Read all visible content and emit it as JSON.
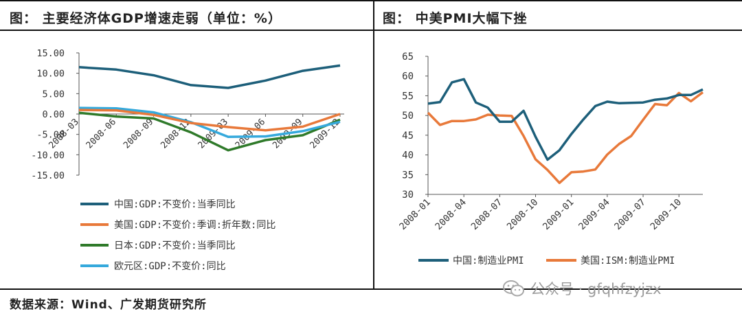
{
  "left_panel": {
    "title": "图：  主要经济体GDP增速走弱（单位：%）",
    "legend": [
      {
        "label": "中国:GDP:不变价:当季同比",
        "color": "#1d5f7a"
      },
      {
        "label": "美国:GDP:不变价:季调:折年数:同比",
        "color": "#e8793a"
      },
      {
        "label": "日本:GDP:不变价:当季同比",
        "color": "#2f7a2a"
      },
      {
        "label": "欧元区:GDP:不变价:同比",
        "color": "#35a9dc"
      }
    ]
  },
  "right_panel": {
    "title": "图：  中美PMI大幅下挫",
    "legend": [
      {
        "label": "中国:制造业PMI",
        "color": "#1d5f7a"
      },
      {
        "label": "美国:ISM:制造业PMI",
        "color": "#e8793a"
      }
    ]
  },
  "source": "数据来源：Wind、广发期货研究所",
  "watermark": "公众号 · gfqhfzyjzx",
  "chart_data": [
    {
      "type": "line",
      "title": "主要经济体GDP增速走弱（单位：%）",
      "categories": [
        "2008-03",
        "2008-06",
        "2008-09",
        "2008-12",
        "2009-03",
        "2009-06",
        "2009-09",
        "2009-12"
      ],
      "y_tick_labels": [
        "15.00",
        "10.00",
        "5.00",
        "0.00",
        "-5.00",
        "-10.00",
        "-15.00"
      ],
      "ylim": [
        -15,
        15
      ],
      "grid": false,
      "legend_position": "bottom",
      "series": [
        {
          "name": "中国:GDP:不变价:当季同比",
          "values": [
            11.5,
            10.9,
            9.5,
            7.1,
            6.4,
            8.2,
            10.6,
            11.9
          ]
        },
        {
          "name": "美国:GDP:不变价:季调:折年数:同比",
          "values": [
            1.0,
            0.9,
            -0.2,
            -2.2,
            -3.2,
            -4.0,
            -3.1,
            0.0
          ]
        },
        {
          "name": "日本:GDP:不变价:当季同比",
          "values": [
            0.3,
            -0.6,
            -1.1,
            -4.5,
            -8.9,
            -6.4,
            -5.2,
            -1.4
          ]
        },
        {
          "name": "欧元区:GDP:不变价:同比",
          "values": [
            1.5,
            1.4,
            0.4,
            -2.0,
            -5.6,
            -5.5,
            -4.2,
            -1.9
          ]
        }
      ]
    },
    {
      "type": "line",
      "title": "中美PMI大幅下挫",
      "x": [
        "2008-01",
        "2008-02",
        "2008-03",
        "2008-04",
        "2008-05",
        "2008-06",
        "2008-07",
        "2008-08",
        "2008-09",
        "2008-10",
        "2008-11",
        "2008-12",
        "2009-01",
        "2009-02",
        "2009-03",
        "2009-04",
        "2009-05",
        "2009-06",
        "2009-07",
        "2009-08",
        "2009-09",
        "2009-10",
        "2009-11",
        "2009-12"
      ],
      "x_tick_labels": [
        "2008-01",
        "2008-04",
        "2008-07",
        "2008-10",
        "2009-01",
        "2009-04",
        "2009-07",
        "2009-10"
      ],
      "y_tick_labels": [
        "65",
        "60",
        "55",
        "50",
        "45",
        "40",
        "35",
        "30"
      ],
      "ylim": [
        30,
        65
      ],
      "grid": false,
      "legend_position": "bottom",
      "series": [
        {
          "name": "中国:制造业PMI",
          "values": [
            53.0,
            53.4,
            58.4,
            59.2,
            53.3,
            52.0,
            48.4,
            48.4,
            51.2,
            44.6,
            38.8,
            41.2,
            45.3,
            49.0,
            52.4,
            53.5,
            53.1,
            53.2,
            53.3,
            54.0,
            54.3,
            55.2,
            55.2,
            56.6
          ]
        },
        {
          "name": "美国:ISM:制造业PMI",
          "values": [
            50.7,
            47.6,
            48.6,
            48.6,
            49.0,
            50.2,
            50.0,
            49.9,
            44.8,
            38.9,
            36.2,
            32.9,
            35.6,
            35.8,
            36.3,
            40.1,
            42.8,
            44.8,
            48.9,
            52.9,
            52.6,
            55.7,
            53.6,
            55.9
          ]
        }
      ]
    }
  ]
}
